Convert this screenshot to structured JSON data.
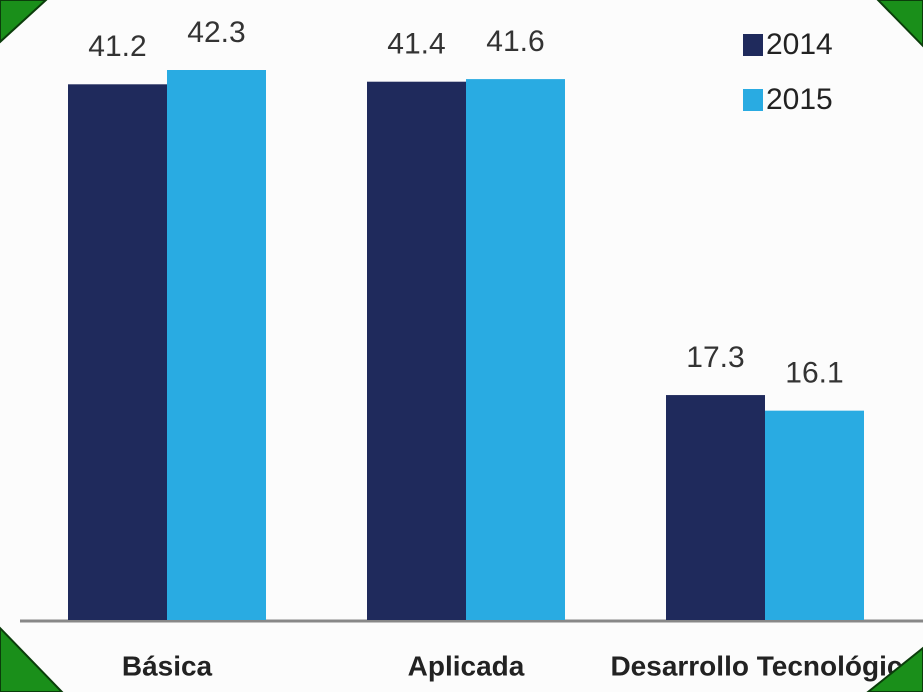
{
  "chart_data": {
    "type": "bar",
    "categories": [
      "Básica",
      "Aplicada",
      "Desarrollo Tecnológico"
    ],
    "series": [
      {
        "name": "2014",
        "color": "#1f2a5c",
        "values": [
          41.2,
          41.4,
          17.3
        ]
      },
      {
        "name": "2015",
        "color": "#29abe2",
        "values": [
          42.3,
          41.6,
          16.1
        ]
      }
    ]
  }
}
